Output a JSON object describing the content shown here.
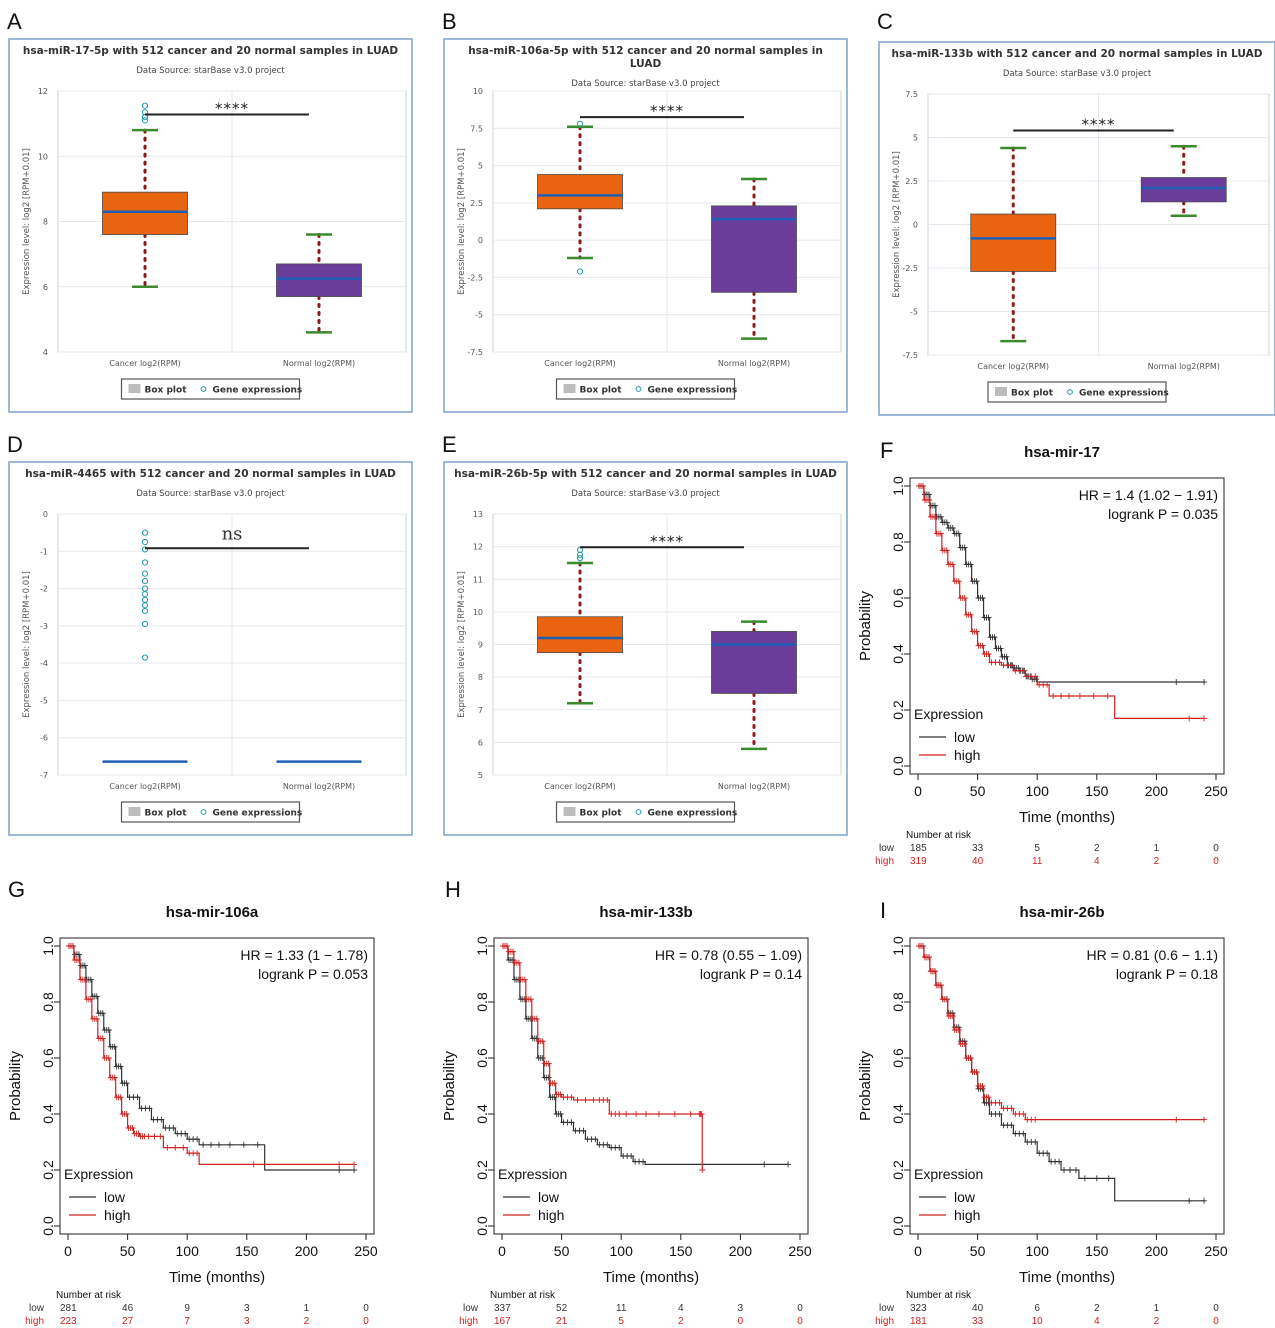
{
  "chart_data": [
    {
      "panel": "A",
      "type": "box",
      "title": "hsa-miR-17-5p with 512 cancer and 20 normal samples in LUAD",
      "subtitle": "Data Source: starBase v3.0 project",
      "ylabel": "Expression level: log2 [RPM+0.01]",
      "ylim": [
        4,
        12
      ],
      "yticks": [
        4,
        6,
        8,
        10,
        12
      ],
      "significance": "****",
      "legend": [
        "Box plot",
        "Gene expressions"
      ],
      "groups": [
        {
          "name": "Cancer log2(RPM)",
          "color": "#e8640e",
          "q1": 7.6,
          "median": 8.3,
          "q3": 8.9,
          "whisker_low": 6.0,
          "whisker_high": 10.8,
          "outliers": [
            11.1,
            11.2,
            11.35,
            11.55
          ]
        },
        {
          "name": "Normal log2(RPM)",
          "color": "#6a3d9a",
          "q1": 5.7,
          "median": 6.25,
          "q3": 6.7,
          "whisker_low": 4.6,
          "whisker_high": 7.6,
          "outliers": []
        }
      ]
    },
    {
      "panel": "B",
      "type": "box",
      "title": "hsa-miR-106a-5p with 512 cancer and 20 normal samples in LUAD",
      "subtitle": "Data Source: starBase v3.0 project",
      "ylabel": "Expression level: log2 [RPM+0.01]",
      "ylim": [
        -7.5,
        10
      ],
      "yticks": [
        -7.5,
        -5,
        -2.5,
        0,
        2.5,
        5,
        7.5,
        10
      ],
      "significance": "****",
      "legend": [
        "Box plot",
        "Gene expressions"
      ],
      "groups": [
        {
          "name": "Cancer log2(RPM)",
          "color": "#e8640e",
          "q1": 2.1,
          "median": 3.0,
          "q3": 4.4,
          "whisker_low": -1.2,
          "whisker_high": 7.6,
          "outliers": [
            -2.1,
            7.8
          ]
        },
        {
          "name": "Normal log2(RPM)",
          "color": "#6a3d9a",
          "q1": -3.5,
          "median": 1.4,
          "q3": 2.3,
          "whisker_low": -6.6,
          "whisker_high": 4.1,
          "outliers": []
        }
      ]
    },
    {
      "panel": "C",
      "type": "box",
      "title": "hsa-miR-133b with 512 cancer and 20 normal samples in LUAD",
      "subtitle": "Data Source: starBase v3.0 project",
      "ylabel": "Expression level: log2 [RPM+0.01]",
      "ylim": [
        -7.5,
        7.5
      ],
      "yticks": [
        -7.5,
        -5,
        -2.5,
        0,
        2.5,
        5,
        7.5
      ],
      "significance": "****",
      "legend": [
        "Box plot",
        "Gene expressions"
      ],
      "groups": [
        {
          "name": "Cancer log2(RPM)",
          "color": "#e8640e",
          "q1": -2.7,
          "median": -0.8,
          "q3": 0.6,
          "whisker_low": -6.7,
          "whisker_high": 4.4,
          "outliers": []
        },
        {
          "name": "Normal log2(RPM)",
          "color": "#6a3d9a",
          "q1": 1.3,
          "median": 2.1,
          "q3": 2.7,
          "whisker_low": 0.5,
          "whisker_high": 4.5,
          "outliers": []
        }
      ]
    },
    {
      "panel": "D",
      "type": "box",
      "title": "hsa-miR-4465 with 512 cancer and 20 normal samples in LUAD",
      "subtitle": "Data Source: starBase v3.0 project",
      "ylabel": "Expression level: log2 [RPM+0.01]",
      "ylim": [
        -7,
        0
      ],
      "yticks": [
        -7,
        -6,
        -5,
        -4,
        -3,
        -2,
        -1,
        0
      ],
      "significance": "ns",
      "legend": [
        "Box plot",
        "Gene expressions"
      ],
      "groups": [
        {
          "name": "Cancer log2(RPM)",
          "color": "#e8640e",
          "q1": -6.64,
          "median": -6.64,
          "q3": -6.64,
          "whisker_low": -6.64,
          "whisker_high": -6.64,
          "outliers": [
            -0.5,
            -0.75,
            -0.95,
            -1.3,
            -1.6,
            -1.8,
            -2.0,
            -2.15,
            -2.3,
            -2.45,
            -2.6,
            -2.95,
            -3.85
          ]
        },
        {
          "name": "Normal log2(RPM)",
          "color": "#6a3d9a",
          "q1": -6.64,
          "median": -6.64,
          "q3": -6.64,
          "whisker_low": -6.64,
          "whisker_high": -6.64,
          "outliers": []
        }
      ]
    },
    {
      "panel": "E",
      "type": "box",
      "title": "hsa-miR-26b-5p with 512 cancer and 20 normal samples in LUAD",
      "subtitle": "Data Source: starBase v3.0 project",
      "ylabel": "Expression level: log2 [RPM+0.01]",
      "ylim": [
        5,
        13
      ],
      "yticks": [
        5,
        6,
        7,
        8,
        9,
        10,
        11,
        12,
        13
      ],
      "significance": "****",
      "legend": [
        "Box plot",
        "Gene expressions"
      ],
      "groups": [
        {
          "name": "Cancer log2(RPM)",
          "color": "#e8640e",
          "q1": 8.75,
          "median": 9.2,
          "q3": 9.85,
          "whisker_low": 7.2,
          "whisker_high": 11.5,
          "outliers": [
            11.65,
            11.75,
            11.9
          ]
        },
        {
          "name": "Normal log2(RPM)",
          "color": "#6a3d9a",
          "q1": 7.5,
          "median": 9.0,
          "q3": 9.4,
          "whisker_low": 5.8,
          "whisker_high": 9.7,
          "outliers": []
        }
      ]
    },
    {
      "panel": "F",
      "type": "line",
      "title": "hsa-mir-17",
      "hr_text": "HR = 1.4 (1.02 − 1.91)",
      "p_text": "logrank P = 0.035",
      "xlabel": "Time (months)",
      "ylabel": "Probability",
      "xlim": [
        0,
        250
      ],
      "ylim": [
        0,
        1
      ],
      "xticks": [
        0,
        50,
        100,
        150,
        200,
        250
      ],
      "yticks": [
        0,
        0.2,
        0.4,
        0.6,
        0.8,
        1.0
      ],
      "legend_title": "Expression",
      "risk_title": "Number at risk",
      "risk_times": [
        0,
        50,
        100,
        150,
        200,
        250
      ],
      "series": [
        {
          "name": "low",
          "color": "#333333",
          "risk": [
            "185",
            "33",
            "5",
            "2",
            "1",
            "0"
          ],
          "x": [
            0,
            5,
            10,
            15,
            20,
            25,
            30,
            35,
            40,
            45,
            50,
            55,
            60,
            65,
            70,
            75,
            80,
            85,
            90,
            95,
            100,
            240
          ],
          "y": [
            1.0,
            0.97,
            0.93,
            0.89,
            0.87,
            0.85,
            0.83,
            0.78,
            0.72,
            0.66,
            0.6,
            0.53,
            0.46,
            0.42,
            0.39,
            0.36,
            0.35,
            0.34,
            0.32,
            0.31,
            0.3,
            0.3
          ]
        },
        {
          "name": "high",
          "color": "#d42020",
          "risk": [
            "319",
            "40",
            "11",
            "4",
            "2",
            "0"
          ],
          "x": [
            0,
            5,
            10,
            15,
            20,
            25,
            30,
            35,
            40,
            45,
            50,
            55,
            60,
            70,
            80,
            90,
            100,
            110,
            130,
            165,
            240
          ],
          "y": [
            1.0,
            0.95,
            0.89,
            0.83,
            0.77,
            0.72,
            0.66,
            0.6,
            0.54,
            0.48,
            0.43,
            0.4,
            0.37,
            0.36,
            0.34,
            0.32,
            0.29,
            0.25,
            0.25,
            0.17,
            0.17
          ]
        }
      ]
    },
    {
      "panel": "G",
      "type": "line",
      "title": "hsa-mir-106a",
      "hr_text": "HR = 1.33 (1 − 1.78)",
      "p_text": "logrank P = 0.053",
      "xlabel": "Time (months)",
      "ylabel": "Probability",
      "xlim": [
        0,
        250
      ],
      "ylim": [
        0,
        1
      ],
      "xticks": [
        0,
        50,
        100,
        150,
        200,
        250
      ],
      "yticks": [
        0,
        0.2,
        0.4,
        0.6,
        0.8,
        1.0
      ],
      "legend_title": "Expression",
      "risk_title": "Number at risk",
      "risk_times": [
        0,
        50,
        100,
        150,
        200,
        250
      ],
      "series": [
        {
          "name": "low",
          "color": "#333333",
          "risk": [
            "281",
            "46",
            "9",
            "3",
            "1",
            "0"
          ],
          "x": [
            0,
            5,
            10,
            15,
            20,
            25,
            30,
            35,
            40,
            45,
            50,
            60,
            70,
            80,
            90,
            100,
            110,
            130,
            165,
            240
          ],
          "y": [
            1.0,
            0.97,
            0.93,
            0.88,
            0.82,
            0.76,
            0.7,
            0.64,
            0.57,
            0.51,
            0.46,
            0.42,
            0.38,
            0.35,
            0.33,
            0.31,
            0.29,
            0.29,
            0.2,
            0.2
          ]
        },
        {
          "name": "high",
          "color": "#d42020",
          "risk": [
            "223",
            "27",
            "7",
            "3",
            "2",
            "0"
          ],
          "x": [
            0,
            5,
            10,
            15,
            20,
            25,
            30,
            35,
            40,
            45,
            50,
            55,
            60,
            65,
            80,
            100,
            110,
            165,
            240
          ],
          "y": [
            1.0,
            0.95,
            0.88,
            0.81,
            0.74,
            0.67,
            0.6,
            0.53,
            0.46,
            0.4,
            0.35,
            0.33,
            0.32,
            0.32,
            0.28,
            0.26,
            0.22,
            0.22,
            0.22
          ]
        }
      ]
    },
    {
      "panel": "H",
      "type": "line",
      "title": "hsa-mir-133b",
      "hr_text": "HR = 0.78 (0.55 − 1.09)",
      "p_text": "logrank P = 0.14",
      "xlabel": "Time (months)",
      "ylabel": "Probability",
      "xlim": [
        0,
        250
      ],
      "ylim": [
        0,
        1
      ],
      "xticks": [
        0,
        50,
        100,
        150,
        200,
        250
      ],
      "yticks": [
        0,
        0.2,
        0.4,
        0.6,
        0.8,
        1.0
      ],
      "legend_title": "Expression",
      "risk_title": "Number at risk",
      "risk_times": [
        0,
        50,
        100,
        150,
        200,
        250
      ],
      "series": [
        {
          "name": "low",
          "color": "#333333",
          "risk": [
            "337",
            "52",
            "11",
            "4",
            "3",
            "0"
          ],
          "x": [
            0,
            5,
            10,
            15,
            20,
            25,
            30,
            35,
            40,
            45,
            50,
            60,
            70,
            80,
            90,
            100,
            110,
            120,
            240
          ],
          "y": [
            1.0,
            0.95,
            0.88,
            0.81,
            0.74,
            0.67,
            0.6,
            0.53,
            0.46,
            0.4,
            0.37,
            0.34,
            0.31,
            0.29,
            0.28,
            0.25,
            0.23,
            0.22,
            0.22
          ]
        },
        {
          "name": "high",
          "color": "#d42020",
          "risk": [
            "167",
            "21",
            "5",
            "2",
            "0",
            "0"
          ],
          "x": [
            0,
            5,
            10,
            15,
            20,
            25,
            30,
            35,
            40,
            45,
            50,
            60,
            80,
            90,
            100,
            125,
            165,
            168
          ],
          "y": [
            1.0,
            0.98,
            0.94,
            0.88,
            0.81,
            0.74,
            0.66,
            0.58,
            0.51,
            0.47,
            0.46,
            0.45,
            0.45,
            0.4,
            0.4,
            0.4,
            0.4,
            0.2
          ]
        }
      ]
    },
    {
      "panel": "I",
      "type": "line",
      "title": "hsa-mir-26b",
      "hr_text": "HR = 0.81 (0.6 − 1.1)",
      "p_text": "logrank P = 0.18",
      "xlabel": "Time (months)",
      "ylabel": "Probability",
      "xlim": [
        0,
        250
      ],
      "ylim": [
        0,
        1
      ],
      "xticks": [
        0,
        50,
        100,
        150,
        200,
        250
      ],
      "yticks": [
        0,
        0.2,
        0.4,
        0.6,
        0.8,
        1.0
      ],
      "legend_title": "Expression",
      "risk_title": "Number at risk",
      "risk_times": [
        0,
        50,
        100,
        150,
        200,
        250
      ],
      "series": [
        {
          "name": "low",
          "color": "#333333",
          "risk": [
            "323",
            "40",
            "6",
            "2",
            "1",
            "0"
          ],
          "x": [
            0,
            5,
            10,
            15,
            20,
            25,
            30,
            35,
            40,
            45,
            50,
            55,
            60,
            70,
            80,
            90,
            100,
            110,
            120,
            135,
            165,
            240
          ],
          "y": [
            1.0,
            0.96,
            0.91,
            0.86,
            0.81,
            0.76,
            0.71,
            0.66,
            0.6,
            0.55,
            0.49,
            0.44,
            0.4,
            0.36,
            0.33,
            0.3,
            0.26,
            0.23,
            0.2,
            0.17,
            0.09,
            0.09
          ]
        },
        {
          "name": "high",
          "color": "#d42020",
          "risk": [
            "181",
            "33",
            "10",
            "4",
            "2",
            "0"
          ],
          "x": [
            0,
            5,
            10,
            15,
            20,
            25,
            30,
            35,
            40,
            45,
            50,
            55,
            60,
            70,
            80,
            90,
            100,
            240
          ],
          "y": [
            1.0,
            0.96,
            0.91,
            0.86,
            0.81,
            0.75,
            0.7,
            0.65,
            0.6,
            0.55,
            0.5,
            0.46,
            0.44,
            0.42,
            0.4,
            0.38,
            0.38,
            0.38
          ]
        }
      ]
    }
  ]
}
